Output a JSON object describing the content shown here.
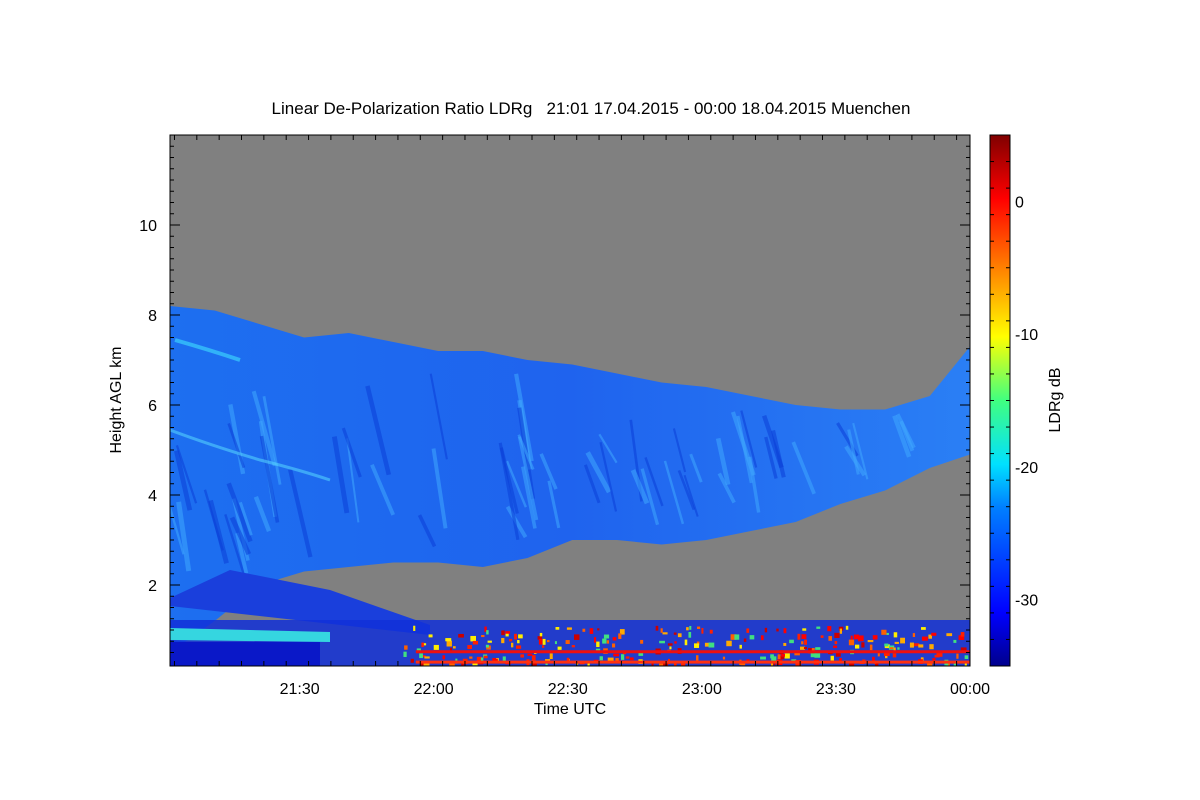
{
  "chart_data": {
    "type": "heatmap",
    "title": "Linear De-Polarization Ratio LDRg   21:01 17.04.2015 - 00:00 18.04.2015 Muenchen",
    "xlabel": "Time UTC",
    "ylabel": "Height AGL km",
    "xlim": [
      "21:01",
      "00:00"
    ],
    "ylim": [
      0.2,
      12
    ],
    "x_tick_labels": [
      "21:30",
      "22:00",
      "22:30",
      "23:00",
      "23:30",
      "00:00"
    ],
    "x_tick_minutes": [
      29,
      59,
      89,
      119,
      149,
      179
    ],
    "y_tick_labels": [
      "2",
      "4",
      "6",
      "8",
      "10"
    ],
    "y_ticks": [
      2,
      4,
      6,
      8,
      10
    ],
    "colorbar": {
      "label": "LDRg dB",
      "range": [
        -35,
        5
      ],
      "tick_labels": [
        "0",
        "-10",
        "-20",
        "-30"
      ],
      "ticks": [
        0,
        -10,
        -20,
        -30
      ]
    },
    "no_data_color": "#808080",
    "series": [
      {
        "name": "cloud_top",
        "unit": "km",
        "x": [
          0,
          10,
          20,
          30,
          40,
          50,
          60,
          70,
          80,
          90,
          100,
          110,
          120,
          130,
          140,
          150,
          160,
          170,
          179
        ],
        "y": [
          8.2,
          8.1,
          7.8,
          7.5,
          7.6,
          7.4,
          7.2,
          7.2,
          7.0,
          6.9,
          6.7,
          6.5,
          6.4,
          6.2,
          6.0,
          5.9,
          5.9,
          6.2,
          7.3
        ]
      },
      {
        "name": "cloud_base",
        "unit": "km",
        "x": [
          0,
          10,
          20,
          30,
          40,
          50,
          60,
          70,
          80,
          90,
          100,
          110,
          120,
          130,
          140,
          150,
          160,
          170,
          179
        ],
        "y": [
          0.5,
          1.2,
          2.0,
          2.3,
          2.4,
          2.5,
          2.5,
          2.4,
          2.6,
          3.0,
          3.0,
          2.9,
          3.0,
          3.2,
          3.4,
          3.8,
          4.1,
          4.6,
          4.9
        ]
      }
    ]
  }
}
